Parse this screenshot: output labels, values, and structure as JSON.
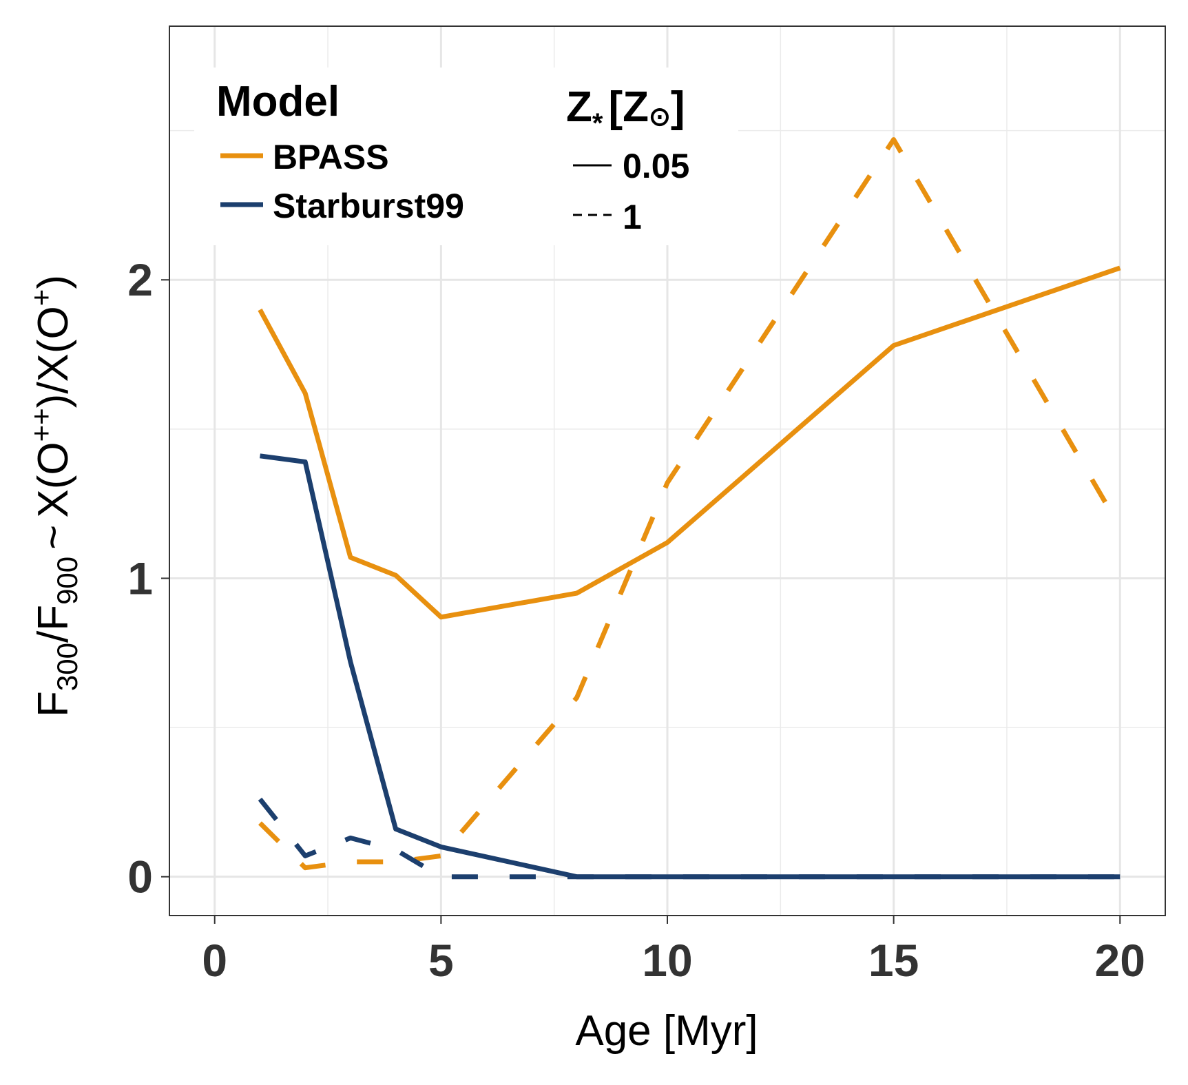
{
  "chart_data": {
    "type": "line",
    "title": "",
    "xlabel": "Age [Myr]",
    "ylabel": "F300/F900 ~ X(O++)/X(O+)",
    "ylabel_parts": {
      "f": "F",
      "sub300": "300",
      "slash": "/",
      "sub900": "900",
      "tilde": "~",
      "x": "X(O",
      "sup_pp": "++",
      "x2": "X(O",
      "sup_p": "+",
      "close": ")"
    },
    "xlim": [
      -1,
      21
    ],
    "ylim": [
      -0.13,
      2.85
    ],
    "x_ticks": [
      0,
      5,
      10,
      15,
      20
    ],
    "y_ticks": [
      0,
      1,
      2
    ],
    "x_tick_labels": [
      "0",
      "5",
      "10",
      "15",
      "20"
    ],
    "y_tick_labels": [
      "0",
      "1",
      "2"
    ],
    "grid": true,
    "legend_position": "top-left",
    "legend": {
      "model_title": "Model",
      "models": [
        {
          "label": "BPASS",
          "color": "#E8900F"
        },
        {
          "label": "Starburst99",
          "color": "#1C3F6E"
        }
      ],
      "z_title": "Z",
      "z_title_sub": "*",
      "z_title_bracket_open": "[Z",
      "z_title_sun": "⊙",
      "z_title_bracket_close": "]",
      "metallicities": [
        {
          "label": "0.05",
          "linestyle": "solid"
        },
        {
          "label": "1",
          "linestyle": "dashed"
        }
      ]
    },
    "series": [
      {
        "model": "BPASS",
        "metallicity": "0.05",
        "linestyle": "solid",
        "color": "#E8900F",
        "x": [
          1,
          2,
          3,
          4,
          5,
          8,
          10,
          15,
          20
        ],
        "y": [
          1.9,
          1.62,
          1.07,
          1.01,
          0.87,
          0.95,
          1.12,
          1.78,
          2.04
        ]
      },
      {
        "model": "BPASS",
        "metallicity": "1",
        "linestyle": "dashed",
        "color": "#E8900F",
        "x": [
          1,
          2,
          3,
          4,
          5,
          8,
          10,
          15,
          20
        ],
        "y": [
          0.18,
          0.03,
          0.05,
          0.05,
          0.07,
          0.6,
          1.32,
          2.47,
          1.17
        ]
      },
      {
        "model": "Starburst99",
        "metallicity": "0.05",
        "linestyle": "solid",
        "color": "#1C3F6E",
        "x": [
          1,
          2,
          3,
          4,
          5,
          8,
          10,
          15,
          20
        ],
        "y": [
          1.41,
          1.39,
          0.72,
          0.16,
          0.1,
          0.0,
          0.0,
          0.0,
          0.0
        ]
      },
      {
        "model": "Starburst99",
        "metallicity": "1",
        "linestyle": "dashed",
        "color": "#1C3F6E",
        "x": [
          1,
          2,
          3,
          4,
          5,
          8,
          10,
          15,
          20
        ],
        "y": [
          0.26,
          0.07,
          0.13,
          0.09,
          0.0,
          0.0,
          0.0,
          0.0,
          0.0
        ]
      }
    ]
  }
}
